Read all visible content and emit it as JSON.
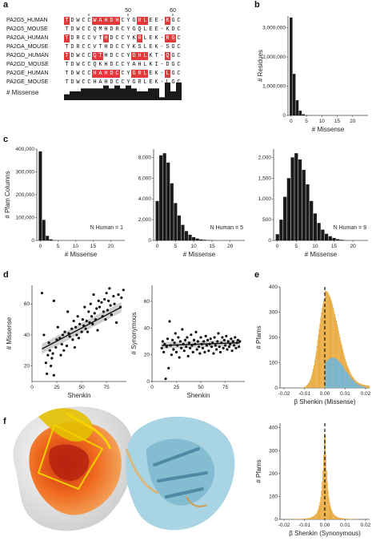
{
  "panels": {
    "a": "a",
    "b": "b",
    "c": "c",
    "d": "d",
    "e": "e",
    "f": "f"
  },
  "alignment": {
    "tick_labels": [
      "50",
      "60"
    ],
    "rows": [
      {
        "name": "PA2G5_HUMAN",
        "seq": "TDWCCWAHDHCYGRLEE-KGC",
        "hl": [
          0,
          5,
          6,
          7,
          8,
          9,
          13,
          14,
          18
        ]
      },
      {
        "name": "PA2G5_MOUSE",
        "seq": "TDWCCQMHDRCYGQLEE-KDC",
        "hl": []
      },
      {
        "name": "PA2GA_HUMAN",
        "seq": "TDRCCVTHDCCYKRLEK-RGC",
        "hl": [
          0,
          7,
          13,
          18,
          19
        ]
      },
      {
        "name": "PA2GA_MOUSE",
        "seq": "TDRCCVTHDCCYKSLEK-SGC",
        "hl": []
      },
      {
        "name": "PA2GD_HUMAN",
        "seq": "TDWCCQTHDCCYDHLKT-QGC",
        "hl": [
          0,
          5,
          6,
          12,
          13,
          14,
          18
        ]
      },
      {
        "name": "PA2GD_MOUSE",
        "seq": "TDWCCQKHDCCYAHLKI-DGC",
        "hl": []
      },
      {
        "name": "PA2GE_HUMAN",
        "seq": "TDWCCHAHDCCYGRLEK-LGC",
        "hl": [
          5,
          6,
          7,
          8,
          9,
          12,
          13,
          14,
          18
        ]
      },
      {
        "name": "PA2GE_MOUSE",
        "seq": "TDWCCHAHDCCYGRLEK-LGC",
        "hl": []
      }
    ],
    "missense_label": "# Missense",
    "missense_bars": [
      2,
      3,
      3,
      4,
      4,
      4,
      4,
      5,
      4,
      5,
      4,
      5,
      4,
      3,
      3,
      4,
      4,
      1,
      6,
      3,
      6
    ]
  },
  "chart_data": [
    {
      "id": "b",
      "type": "bar",
      "title": "",
      "xlabel": "# Missense",
      "ylabel": "# Residues",
      "xlim": [
        -1,
        25
      ],
      "ylim": [
        0,
        3400000
      ],
      "xticks": [
        "0",
        "5",
        "10",
        "15",
        "20"
      ],
      "yticks": [
        "0",
        "1,000,000",
        "2,000,000",
        "3,000,000"
      ],
      "x": [
        0,
        1,
        2,
        3,
        4,
        5
      ],
      "values": [
        3350000,
        1420000,
        520000,
        160000,
        40000,
        10000
      ]
    },
    {
      "id": "c1",
      "type": "bar",
      "xlabel": "# Missense",
      "ylabel": "# Pfam Columns",
      "annotation": "N Human = 1",
      "xlim": [
        -1,
        24
      ],
      "ylim": [
        0,
        400000
      ],
      "xticks": [
        "0",
        "5",
        "10",
        "15",
        "20"
      ],
      "yticks": [
        "0",
        "100,000",
        "200,000",
        "300,000",
        "400,000"
      ],
      "x": [
        0,
        1,
        2,
        3,
        4
      ],
      "values": [
        390000,
        90000,
        20000,
        5000,
        1000
      ]
    },
    {
      "id": "c2",
      "type": "bar",
      "xlabel": "# Missense",
      "ylabel": "",
      "annotation": "N Human = 5",
      "xlim": [
        -1,
        24
      ],
      "ylim": [
        0,
        8800
      ],
      "xticks": [
        "0",
        "5",
        "10",
        "15",
        "20"
      ],
      "yticks": [
        "0",
        "2,000",
        "4,000",
        "6,000",
        "8,000"
      ],
      "x": [
        0,
        1,
        2,
        3,
        4,
        5,
        6,
        7,
        8,
        9,
        10,
        11,
        12,
        13,
        14,
        15
      ],
      "values": [
        3800,
        8200,
        8400,
        7500,
        5500,
        3600,
        2400,
        1500,
        900,
        550,
        320,
        180,
        100,
        60,
        30,
        15
      ]
    },
    {
      "id": "c3",
      "type": "bar",
      "xlabel": "# Missense",
      "ylabel": "",
      "annotation": "N Human = 9",
      "xlim": [
        -1,
        24
      ],
      "ylim": [
        0,
        2200
      ],
      "xticks": [
        "0",
        "5",
        "10",
        "15",
        "20"
      ],
      "yticks": [
        "0",
        "500",
        "1,000",
        "1,500",
        "2,000"
      ],
      "x": [
        0,
        1,
        2,
        3,
        4,
        5,
        6,
        7,
        8,
        9,
        10,
        11,
        12,
        13,
        14,
        15,
        16,
        17,
        18
      ],
      "values": [
        150,
        500,
        1050,
        1500,
        2000,
        2100,
        1950,
        1700,
        1350,
        950,
        650,
        420,
        260,
        160,
        100,
        60,
        30,
        15,
        5
      ]
    },
    {
      "id": "d1",
      "type": "scatter",
      "xlabel": "Shenkin",
      "ylabel": "# Missense",
      "xlim": [
        0,
        95
      ],
      "ylim": [
        10,
        72
      ],
      "xticks": [
        "0",
        "25",
        "50",
        "75"
      ],
      "yticks": [
        "20",
        "40",
        "60"
      ],
      "trend": [
        [
          10,
          31
        ],
        [
          90,
          58
        ]
      ],
      "points": [
        [
          10,
          67
        ],
        [
          12,
          40
        ],
        [
          14,
          22
        ],
        [
          15,
          15
        ],
        [
          16,
          27
        ],
        [
          17,
          35
        ],
        [
          18,
          30
        ],
        [
          19,
          20
        ],
        [
          20,
          25
        ],
        [
          21,
          28
        ],
        [
          22,
          14
        ],
        [
          22,
          62
        ],
        [
          24,
          32
        ],
        [
          25,
          37
        ],
        [
          26,
          45
        ],
        [
          28,
          38
        ],
        [
          29,
          27
        ],
        [
          30,
          34
        ],
        [
          31,
          40
        ],
        [
          32,
          30
        ],
        [
          33,
          42
        ],
        [
          35,
          33
        ],
        [
          36,
          55
        ],
        [
          37,
          41
        ],
        [
          38,
          39
        ],
        [
          40,
          44
        ],
        [
          41,
          37
        ],
        [
          42,
          49
        ],
        [
          43,
          32
        ],
        [
          44,
          45
        ],
        [
          45,
          40
        ],
        [
          46,
          52
        ],
        [
          47,
          38
        ],
        [
          48,
          47
        ],
        [
          50,
          42
        ],
        [
          51,
          50
        ],
        [
          52,
          46
        ],
        [
          53,
          58
        ],
        [
          54,
          44
        ],
        [
          55,
          49
        ],
        [
          56,
          42
        ],
        [
          57,
          55
        ],
        [
          58,
          48
        ],
        [
          59,
          60
        ],
        [
          60,
          52
        ],
        [
          61,
          47
        ],
        [
          62,
          66
        ],
        [
          63,
          54
        ],
        [
          64,
          50
        ],
        [
          65,
          57
        ],
        [
          66,
          43
        ],
        [
          67,
          62
        ],
        [
          68,
          58
        ],
        [
          70,
          61
        ],
        [
          71,
          52
        ],
        [
          72,
          55
        ],
        [
          73,
          63
        ],
        [
          74,
          50
        ],
        [
          75,
          67
        ],
        [
          76,
          56
        ],
        [
          77,
          62
        ],
        [
          78,
          70
        ],
        [
          79,
          59
        ],
        [
          80,
          53
        ],
        [
          82,
          65
        ],
        [
          83,
          60
        ],
        [
          85,
          48
        ],
        [
          87,
          66
        ],
        [
          89,
          58
        ],
        [
          90,
          64
        ],
        [
          92,
          69
        ]
      ]
    },
    {
      "id": "d2",
      "type": "scatter",
      "xlabel": "Shenkin",
      "ylabel": "# Synonymous",
      "xlim": [
        0,
        95
      ],
      "ylim": [
        0,
        72
      ],
      "xticks": [
        "0",
        "25",
        "50",
        "75"
      ],
      "yticks": [
        "0",
        "20",
        "40",
        "60"
      ],
      "trend": [
        [
          10,
          27
        ],
        [
          90,
          29
        ]
      ],
      "points": [
        [
          10,
          25
        ],
        [
          11,
          30
        ],
        [
          12,
          22
        ],
        [
          13,
          28
        ],
        [
          14,
          2
        ],
        [
          15,
          26
        ],
        [
          16,
          32
        ],
        [
          17,
          10
        ],
        [
          18,
          45
        ],
        [
          19,
          27
        ],
        [
          20,
          20
        ],
        [
          21,
          31
        ],
        [
          22,
          24
        ],
        [
          23,
          29
        ],
        [
          24,
          36
        ],
        [
          25,
          22
        ],
        [
          26,
          27
        ],
        [
          27,
          33
        ],
        [
          28,
          18
        ],
        [
          29,
          30
        ],
        [
          30,
          25
        ],
        [
          31,
          39
        ],
        [
          32,
          28
        ],
        [
          33,
          23
        ],
        [
          34,
          31
        ],
        [
          35,
          26
        ],
        [
          36,
          33
        ],
        [
          37,
          19
        ],
        [
          38,
          29
        ],
        [
          39,
          25
        ],
        [
          40,
          35
        ],
        [
          41,
          27
        ],
        [
          42,
          22
        ],
        [
          43,
          31
        ],
        [
          44,
          28
        ],
        [
          45,
          37
        ],
        [
          46,
          24
        ],
        [
          47,
          30
        ],
        [
          48,
          26
        ],
        [
          49,
          21
        ],
        [
          50,
          33
        ],
        [
          51,
          28
        ],
        [
          52,
          25
        ],
        [
          53,
          30
        ],
        [
          54,
          22
        ],
        [
          55,
          34
        ],
        [
          56,
          27
        ],
        [
          57,
          31
        ],
        [
          58,
          23
        ],
        [
          59,
          28
        ],
        [
          60,
          32
        ],
        [
          61,
          26
        ],
        [
          62,
          29
        ],
        [
          63,
          21
        ],
        [
          64,
          33
        ],
        [
          65,
          27
        ],
        [
          66,
          24
        ],
        [
          67,
          30
        ],
        [
          68,
          36
        ],
        [
          69,
          26
        ],
        [
          70,
          22
        ],
        [
          71,
          29
        ],
        [
          72,
          33
        ],
        [
          73,
          25
        ],
        [
          74,
          31
        ],
        [
          75,
          27
        ],
        [
          76,
          34
        ],
        [
          77,
          24
        ],
        [
          78,
          30
        ],
        [
          79,
          26
        ],
        [
          80,
          28
        ],
        [
          81,
          32
        ],
        [
          82,
          23
        ],
        [
          83,
          30
        ],
        [
          84,
          27
        ],
        [
          85,
          33
        ],
        [
          86,
          25
        ],
        [
          87,
          29
        ],
        [
          88,
          31
        ],
        [
          89,
          26
        ],
        [
          90,
          30
        ]
      ]
    },
    {
      "id": "e1",
      "type": "bar",
      "xlabel": "β Shenkin (Missense)",
      "ylabel": "# Pfams",
      "xlim": [
        -0.022,
        0.022
      ],
      "ylim": [
        0,
        400
      ],
      "xticks": [
        "-0.02",
        "-0.01",
        "0.00",
        "0.01",
        "0.02"
      ],
      "yticks": [
        "0",
        "100",
        "200",
        "300",
        "400"
      ],
      "series": [
        {
          "name": "",
          "color": "#e8a93c"
        },
        {
          "name": "",
          "color": "#6fb6dc"
        }
      ]
    },
    {
      "id": "e2",
      "type": "bar",
      "xlabel": "β Shenkin (Synonymous)",
      "ylabel": "# Pfams",
      "xlim": [
        -0.022,
        0.022
      ],
      "ylim": [
        0,
        420
      ],
      "xticks": [
        "-0.02",
        "-0.01",
        "0.00",
        "0.01",
        "0.02"
      ],
      "yticks": [
        "0",
        "100",
        "200",
        "300",
        "400"
      ],
      "series": [
        {
          "name": "",
          "color": "#e8a93c"
        }
      ]
    }
  ],
  "colors": {
    "bar": "#1a1a1a",
    "highlight": "#e03a3a",
    "orange": "#e8a93c",
    "blue": "#6fb6dc"
  }
}
